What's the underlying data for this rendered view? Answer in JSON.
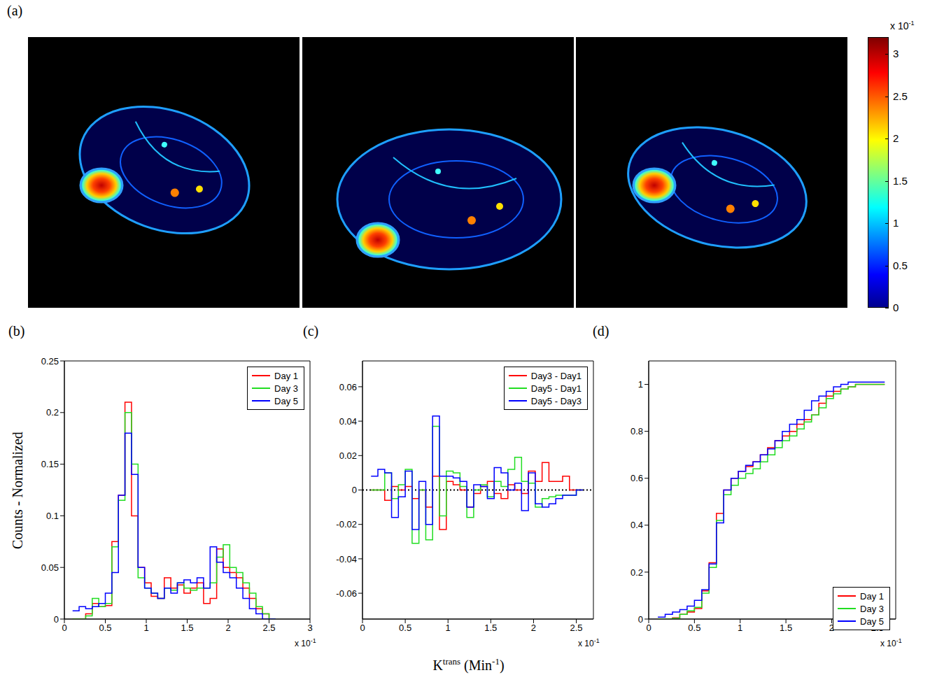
{
  "xlabel": [
    {
      "text": "K"
    },
    {
      "text": "trans",
      "sup": true
    },
    {
      "text": " (Min"
    },
    {
      "text": "-1",
      "sup": true
    },
    {
      "text": ")"
    }
  ],
  "chart_data": [
    {
      "type": "image",
      "label": "(a)",
      "colorbar": {
        "range": [
          0,
          3.2
        ],
        "ticks": [
          0,
          0.5,
          1,
          1.5,
          2,
          2.5,
          3
        ],
        "multiplier": {
          "base": "x 10",
          "exponent": "-1"
        }
      }
    },
    {
      "type": "histogram",
      "label": "(b)",
      "ylabel": "Counts - Normalized",
      "bins": [
        0.1,
        0.18,
        0.26,
        0.34,
        0.42,
        0.5,
        0.58,
        0.66,
        0.74,
        0.82,
        0.9,
        0.98,
        1.06,
        1.14,
        1.22,
        1.3,
        1.38,
        1.46,
        1.54,
        1.62,
        1.7,
        1.78,
        1.86,
        1.94,
        2.02,
        2.1,
        2.18,
        2.26,
        2.34,
        2.42,
        2.5,
        2.58
      ],
      "series": [
        {
          "name": "Day 1",
          "color": "#ff0000",
          "values": [
            0,
            0,
            0.005,
            0.015,
            0.012,
            0.013,
            0.075,
            0.12,
            0.21,
            0.1,
            0.05,
            0.035,
            0.022,
            0.02,
            0.04,
            0.03,
            0.033,
            0.025,
            0.03,
            0.035,
            0.015,
            0.02,
            0.068,
            0.05,
            0.045,
            0.04,
            0.03,
            0.02,
            0.01,
            0.005,
            0
          ]
        },
        {
          "name": "Day 3",
          "color": "#22dd22",
          "values": [
            0,
            0,
            0.003,
            0.02,
            0.012,
            0.015,
            0.07,
            0.115,
            0.2,
            0.15,
            0.04,
            0.03,
            0.025,
            0.02,
            0.03,
            0.028,
            0.035,
            0.03,
            0.028,
            0.03,
            0.03,
            0.035,
            0.06,
            0.072,
            0.05,
            0.045,
            0.035,
            0.025,
            0.012,
            0.005,
            0
          ]
        },
        {
          "name": "Day 5",
          "color": "#0000ff",
          "values": [
            0.008,
            0.012,
            0.01,
            0.012,
            0.015,
            0.025,
            0.045,
            0.12,
            0.18,
            0.14,
            0.05,
            0.03,
            0.025,
            0.02,
            0.03,
            0.025,
            0.035,
            0.038,
            0.035,
            0.04,
            0.03,
            0.07,
            0.055,
            0.045,
            0.04,
            0.03,
            0.02,
            0.01,
            0.005,
            0,
            0
          ]
        }
      ],
      "xlim": [
        0,
        3
      ],
      "xticks": [
        0,
        0.5,
        1,
        1.5,
        2,
        2.5,
        3
      ],
      "ylim": [
        0,
        0.25
      ],
      "yticks": [
        0,
        0.05,
        0.1,
        0.15,
        0.2,
        0.25
      ],
      "x_multiplier": {
        "base": "x 10",
        "exponent": "-1"
      },
      "legend": "upper right"
    },
    {
      "type": "histogram",
      "label": "(c)",
      "bins": [
        0.1,
        0.18,
        0.26,
        0.34,
        0.42,
        0.5,
        0.58,
        0.66,
        0.74,
        0.82,
        0.9,
        0.98,
        1.06,
        1.14,
        1.22,
        1.3,
        1.38,
        1.46,
        1.54,
        1.62,
        1.7,
        1.78,
        1.86,
        1.94,
        2.02,
        2.1,
        2.18,
        2.26,
        2.34,
        2.42,
        2.5,
        2.58
      ],
      "series": [
        {
          "name": "Day3 - Day1",
          "color": "#ff0000",
          "values": [
            0,
            0,
            -0.006,
            0.002,
            0,
            0.002,
            -0.005,
            0,
            -0.01,
            0.008,
            -0.023,
            0.005,
            0.003,
            0,
            -0.01,
            -0.002,
            0.002,
            0.005,
            -0.002,
            -0.005,
            0.003,
            0,
            -0.002,
            0.011,
            0.005,
            0.016,
            0.005,
            0.005,
            0.008,
            0,
            0
          ]
        },
        {
          "name": "Day5 - Day1",
          "color": "#22dd22",
          "values": [
            0,
            0,
            0.01,
            -0.005,
            0.003,
            0.012,
            -0.031,
            0,
            -0.029,
            0.037,
            -0.015,
            0.011,
            0.01,
            0.002,
            -0.016,
            0,
            0.003,
            -0.004,
            0.005,
            0.002,
            0.012,
            0.019,
            0.005,
            0.004,
            -0.01,
            -0.005,
            -0.004,
            -0.003,
            -0.003,
            -0.003,
            0
          ]
        },
        {
          "name": "Day5 - Day3",
          "color": "#0000ff",
          "values": [
            0.008,
            0.012,
            0.01,
            -0.016,
            -0.004,
            0.011,
            -0.023,
            0.005,
            -0.02,
            0.043,
            0.008,
            0.008,
            0.007,
            0.005,
            -0.01,
            0.003,
            0.002,
            -0.005,
            0.013,
            0.01,
            0,
            0.004,
            -0.012,
            0.01,
            -0.008,
            -0.01,
            -0.008,
            -0.005,
            -0.003,
            -0.003,
            0
          ]
        }
      ],
      "xlim": [
        0,
        2.7
      ],
      "xticks": [
        0,
        0.5,
        1,
        1.5,
        2,
        2.5
      ],
      "ylim": [
        -0.075,
        0.075
      ],
      "yticks": [
        -0.06,
        -0.04,
        -0.02,
        0,
        0.02,
        0.04,
        0.06
      ],
      "reference_line": 0,
      "x_multiplier": {
        "base": "x 10",
        "exponent": "-1"
      },
      "legend": "upper right"
    },
    {
      "type": "histogram",
      "label": "(d)",
      "bins": [
        0.1,
        0.18,
        0.26,
        0.34,
        0.42,
        0.5,
        0.58,
        0.66,
        0.74,
        0.82,
        0.9,
        0.98,
        1.06,
        1.14,
        1.22,
        1.3,
        1.38,
        1.46,
        1.54,
        1.62,
        1.7,
        1.78,
        1.86,
        1.94,
        2.02,
        2.1,
        2.18,
        2.26,
        2.34,
        2.42,
        2.5,
        2.58
      ],
      "series": [
        {
          "name": "Day 1",
          "color": "#ff0000",
          "values": [
            0,
            0,
            0.005,
            0.02,
            0.03,
            0.045,
            0.12,
            0.24,
            0.45,
            0.55,
            0.6,
            0.63,
            0.65,
            0.67,
            0.7,
            0.73,
            0.76,
            0.78,
            0.8,
            0.83,
            0.85,
            0.87,
            0.92,
            0.95,
            0.97,
            0.98,
            0.99,
            1,
            1,
            1,
            1
          ]
        },
        {
          "name": "Day 3",
          "color": "#22dd22",
          "values": [
            0,
            0,
            0.003,
            0.02,
            0.035,
            0.05,
            0.11,
            0.22,
            0.42,
            0.53,
            0.57,
            0.6,
            0.62,
            0.64,
            0.67,
            0.7,
            0.73,
            0.76,
            0.78,
            0.81,
            0.84,
            0.87,
            0.9,
            0.94,
            0.96,
            0.98,
            0.99,
            1,
            1,
            1,
            1
          ]
        },
        {
          "name": "Day 5",
          "color": "#0000ff",
          "values": [
            0.008,
            0.02,
            0.03,
            0.04,
            0.055,
            0.08,
            0.125,
            0.235,
            0.41,
            0.55,
            0.6,
            0.63,
            0.655,
            0.67,
            0.7,
            0.725,
            0.76,
            0.8,
            0.83,
            0.85,
            0.89,
            0.93,
            0.95,
            0.97,
            0.99,
            1,
            1.01,
            1.01,
            1.01,
            1.01,
            1.01
          ]
        }
      ],
      "xlim": [
        0,
        2.7
      ],
      "xticks": [
        0,
        0.5,
        1,
        1.5,
        2,
        2.5
      ],
      "ylim": [
        0,
        1.1
      ],
      "yticks": [
        0,
        0.2,
        0.4,
        0.6,
        0.8,
        1
      ],
      "x_multiplier": {
        "base": "x 10",
        "exponent": "-1"
      },
      "legend": "lower right"
    }
  ]
}
